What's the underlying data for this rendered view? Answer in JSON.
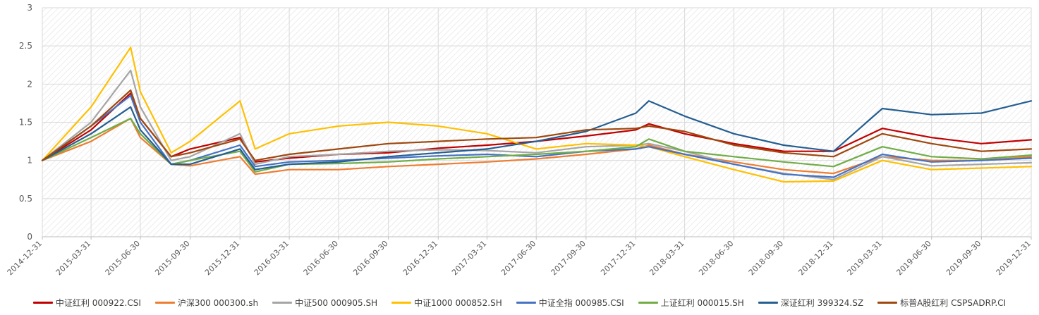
{
  "chart_data": {
    "type": "line",
    "title": "",
    "xlabel": "",
    "ylabel": "",
    "ylim": [
      0,
      3
    ],
    "yticks": [
      "0",
      "0.5",
      "1",
      "1.5",
      "2",
      "2.5",
      "3"
    ],
    "xlim": [
      "2014-12-31",
      "2019-12-31"
    ],
    "x_tick_labels": [
      "2014-12-31",
      "2015-03-31",
      "2015-06-30",
      "2015-09-30",
      "2015-12-31",
      "2016-03-31",
      "2016-06-30",
      "2016-09-30",
      "2016-12-31",
      "2017-03-31",
      "2017-06-30",
      "2017-09-30",
      "2017-12-31",
      "2018-03-31",
      "2018-06-30",
      "2018-09-30",
      "2018-12-31",
      "2019-03-31",
      "2019-06-30",
      "2019-09-30",
      "2019-12-31"
    ],
    "grid": true,
    "legend_position": "bottom",
    "x": [
      "2014-12-31",
      "2015-03-31",
      "2015-06-12",
      "2015-06-30",
      "2015-08-26",
      "2015-09-30",
      "2015-12-31",
      "2016-01-28",
      "2016-03-31",
      "2016-06-30",
      "2016-09-30",
      "2016-12-31",
      "2017-03-31",
      "2017-06-30",
      "2017-09-30",
      "2017-12-31",
      "2018-01-24",
      "2018-03-31",
      "2018-06-30",
      "2018-09-30",
      "2018-12-31",
      "2019-03-31",
      "2019-06-30",
      "2019-09-30",
      "2019-12-31"
    ],
    "series": [
      {
        "name": "中证红利 000922.CSI",
        "color": "#C00000",
        "values": [
          1.0,
          1.4,
          1.88,
          1.55,
          1.05,
          1.15,
          1.3,
          0.98,
          1.03,
          1.08,
          1.1,
          1.16,
          1.2,
          1.25,
          1.32,
          1.4,
          1.48,
          1.35,
          1.22,
          1.12,
          1.12,
          1.42,
          1.3,
          1.22,
          1.27
        ]
      },
      {
        "name": "沪深300 000300.sh",
        "color": "#ED7D31",
        "values": [
          1.0,
          1.25,
          1.55,
          1.3,
          0.95,
          0.93,
          1.05,
          0.82,
          0.88,
          0.88,
          0.92,
          0.95,
          0.98,
          1.02,
          1.08,
          1.15,
          1.2,
          1.08,
          0.98,
          0.88,
          0.83,
          1.05,
          1.0,
          1.0,
          1.05
        ]
      },
      {
        "name": "中证500 000905.SH",
        "color": "#A5A5A5",
        "values": [
          1.0,
          1.5,
          2.18,
          1.7,
          1.0,
          1.05,
          1.35,
          0.95,
          1.05,
          1.08,
          1.12,
          1.14,
          1.13,
          1.1,
          1.18,
          1.2,
          1.22,
          1.12,
          0.95,
          0.83,
          0.75,
          1.05,
          0.93,
          0.95,
          0.97
        ]
      },
      {
        "name": "中证1000 000852.SH",
        "color": "#FFC000",
        "values": [
          1.0,
          1.7,
          2.48,
          1.9,
          1.1,
          1.25,
          1.78,
          1.15,
          1.35,
          1.45,
          1.5,
          1.45,
          1.35,
          1.15,
          1.22,
          1.2,
          1.18,
          1.05,
          0.88,
          0.72,
          0.73,
          1.0,
          0.88,
          0.9,
          0.92
        ]
      },
      {
        "name": "中证全指 000985.CSI",
        "color": "#4472C4",
        "values": [
          1.0,
          1.45,
          1.85,
          1.5,
          0.95,
          1.0,
          1.2,
          0.92,
          0.98,
          1.0,
          1.03,
          1.06,
          1.08,
          1.05,
          1.12,
          1.15,
          1.18,
          1.08,
          0.95,
          0.82,
          0.78,
          1.08,
          0.98,
          1.0,
          1.03
        ]
      },
      {
        "name": "上证红利 000015.SH",
        "color": "#70AD47",
        "values": [
          1.0,
          1.3,
          1.55,
          1.35,
          0.95,
          1.0,
          1.12,
          0.85,
          0.95,
          0.96,
          0.98,
          1.02,
          1.05,
          1.08,
          1.12,
          1.18,
          1.28,
          1.12,
          1.05,
          0.98,
          0.92,
          1.18,
          1.05,
          1.02,
          1.07
        ]
      },
      {
        "name": "深证红利 399324.SZ",
        "color": "#255E91",
        "values": [
          1.0,
          1.35,
          1.7,
          1.4,
          0.95,
          0.95,
          1.15,
          0.88,
          0.95,
          0.98,
          1.05,
          1.1,
          1.15,
          1.25,
          1.38,
          1.62,
          1.78,
          1.58,
          1.35,
          1.2,
          1.12,
          1.68,
          1.6,
          1.62,
          1.78
        ]
      },
      {
        "name": "标普A股红利 CSPSADRP.CI",
        "color": "#9E480E",
        "values": [
          1.0,
          1.45,
          1.92,
          1.55,
          1.05,
          1.1,
          1.28,
          1.0,
          1.08,
          1.15,
          1.22,
          1.25,
          1.28,
          1.3,
          1.4,
          1.42,
          1.45,
          1.38,
          1.2,
          1.1,
          1.05,
          1.35,
          1.22,
          1.12,
          1.15
        ]
      }
    ]
  }
}
